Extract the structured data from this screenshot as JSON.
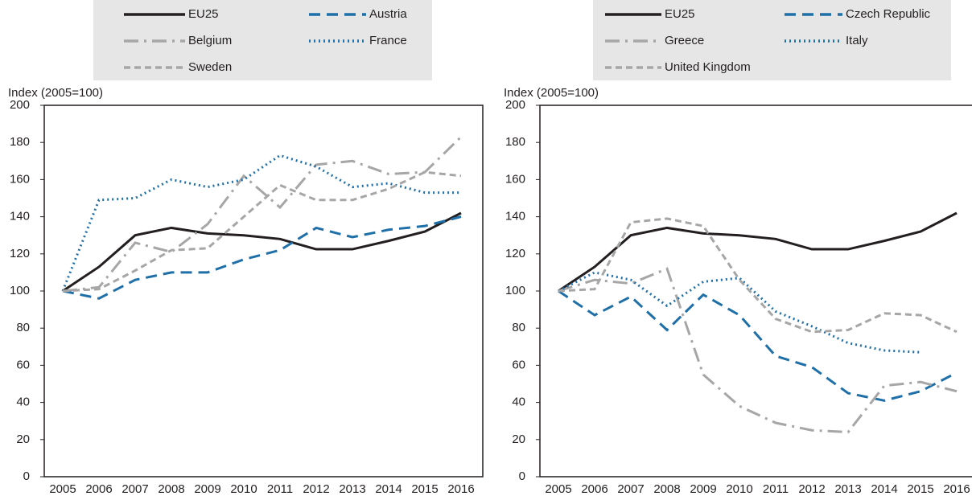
{
  "chart_data": [
    {
      "type": "line",
      "y_label": "Index (2005=100)",
      "categories": [
        "2005",
        "2006",
        "2007",
        "2008",
        "2009",
        "2010",
        "2011",
        "2012",
        "2013",
        "2014",
        "2015",
        "2016"
      ],
      "ylim": [
        0,
        200
      ],
      "yticks": [
        0,
        20,
        40,
        60,
        80,
        100,
        120,
        140,
        160,
        180,
        200
      ],
      "series": [
        {
          "name": "EU25",
          "color": "#231f20",
          "dash": "solid",
          "values": [
            100,
            113,
            130,
            134,
            131,
            130,
            128,
            122.5,
            122.5,
            127,
            132,
            142
          ]
        },
        {
          "name": "Austria",
          "color": "#1f6fa8",
          "dash": "dashed",
          "values": [
            100,
            96,
            106,
            110,
            110,
            117,
            122,
            134,
            129,
            133,
            135,
            140
          ]
        },
        {
          "name": "Belgium",
          "color": "#a6a6a6",
          "dash": "dashdot",
          "values": [
            100,
            102,
            126,
            121,
            136,
            162,
            145,
            168,
            170,
            163,
            164,
            183
          ]
        },
        {
          "name": "France",
          "color": "#1f6fa8",
          "dash": "dotted",
          "values": [
            100,
            149,
            150,
            160,
            156,
            160,
            173,
            167,
            156,
            158,
            153,
            153
          ]
        },
        {
          "name": "Sweden",
          "color": "#a6a6a6",
          "dash": "shortdash",
          "values": [
            100,
            101,
            111,
            122,
            123,
            140,
            157,
            149,
            149,
            155,
            164,
            162
          ]
        }
      ]
    },
    {
      "type": "line",
      "y_label": "Index (2005=100)",
      "categories": [
        "2005",
        "2006",
        "2007",
        "2008",
        "2009",
        "2010",
        "2011",
        "2012",
        "2013",
        "2014",
        "2015",
        "2016"
      ],
      "ylim": [
        0,
        200
      ],
      "yticks": [
        0,
        20,
        40,
        60,
        80,
        100,
        120,
        140,
        160,
        180,
        200
      ],
      "series": [
        {
          "name": "EU25",
          "color": "#231f20",
          "dash": "solid",
          "values": [
            100,
            113,
            130,
            134,
            131,
            130,
            128,
            122.5,
            122.5,
            127,
            132,
            142
          ]
        },
        {
          "name": "Czech Republic",
          "color": "#1f6fa8",
          "dash": "dashed",
          "values": [
            100,
            87,
            97,
            79,
            98,
            87,
            65,
            59,
            45,
            41,
            46,
            56
          ]
        },
        {
          "name": "Greece",
          "color": "#a6a6a6",
          "dash": "dashdot",
          "values": [
            100,
            106,
            104,
            112,
            55,
            38,
            29,
            25,
            24,
            49,
            51,
            46
          ]
        },
        {
          "name": "Italy",
          "color": "#1f6fa8",
          "dash": "dotted",
          "values": [
            100,
            110,
            106,
            92,
            105,
            107,
            89,
            81,
            72,
            68,
            67,
            null
          ]
        },
        {
          "name": "United Kingdom",
          "color": "#a6a6a6",
          "dash": "shortdash",
          "values": [
            100,
            101,
            137,
            139,
            135,
            106,
            85,
            78,
            79,
            88,
            87,
            78
          ]
        }
      ]
    }
  ]
}
